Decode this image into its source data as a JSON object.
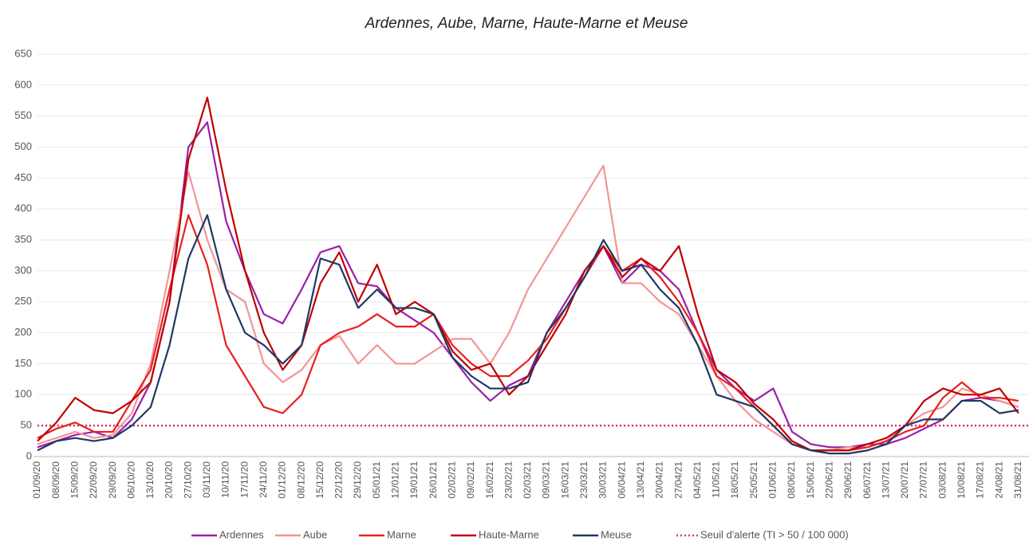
{
  "chart_data": {
    "type": "line",
    "title": "Ardennes, Aube, Marne, Haute-Marne et Meuse",
    "categories": [
      "01/09/20",
      "08/09/20",
      "15/09/20",
      "22/09/20",
      "29/09/20",
      "06/10/20",
      "13/10/20",
      "20/10/20",
      "27/10/20",
      "03/11/20",
      "10/11/20",
      "17/11/20",
      "24/11/20",
      "01/12/20",
      "08/12/20",
      "15/12/20",
      "22/12/20",
      "29/12/20",
      "05/01/21",
      "12/01/21",
      "19/01/21",
      "26/01/21",
      "02/02/21",
      "09/02/21",
      "16/02/21",
      "23/02/21",
      "02/03/21",
      "09/03/21",
      "16/03/21",
      "23/03/21",
      "30/03/21",
      "06/04/21",
      "13/04/21",
      "20/04/21",
      "27/04/21",
      "04/05/21",
      "11/05/21",
      "18/05/21",
      "25/05/21",
      "01/06/21",
      "08/06/21",
      "15/06/21",
      "22/06/21",
      "29/06/21",
      "06/07/21",
      "13/07/21",
      "20/07/21",
      "27/07/21",
      "03/08/21",
      "10/08/21",
      "17/08/21",
      "24/08/21",
      "31/08/21"
    ],
    "series": [
      {
        "name": "Ardennes",
        "color": "#9b1fa8",
        "values": [
          15,
          25,
          35,
          40,
          30,
          60,
          120,
          250,
          500,
          540,
          380,
          300,
          230,
          215,
          270,
          330,
          340,
          280,
          275,
          240,
          220,
          200,
          160,
          120,
          90,
          115,
          130,
          200,
          250,
          300,
          340,
          280,
          310,
          300,
          270,
          200,
          140,
          110,
          90,
          110,
          40,
          20,
          15,
          15,
          20,
          20,
          30,
          45,
          60,
          90,
          95,
          90,
          80
        ]
      },
      {
        "name": "Aube",
        "color": "#f39595",
        "values": [
          20,
          30,
          40,
          30,
          35,
          70,
          150,
          300,
          460,
          350,
          270,
          250,
          150,
          120,
          140,
          180,
          195,
          150,
          180,
          150,
          150,
          170,
          190,
          190,
          150,
          200,
          270,
          320,
          370,
          420,
          470,
          280,
          280,
          250,
          230,
          180,
          130,
          90,
          60,
          40,
          20,
          10,
          10,
          15,
          15,
          25,
          50,
          70,
          80,
          110,
          100,
          90,
          80
        ]
      },
      {
        "name": "Marne",
        "color": "#e8201f",
        "values": [
          30,
          45,
          55,
          40,
          40,
          90,
          140,
          270,
          390,
          310,
          180,
          130,
          80,
          70,
          100,
          180,
          200,
          210,
          230,
          210,
          210,
          230,
          180,
          150,
          130,
          130,
          155,
          190,
          240,
          290,
          340,
          300,
          320,
          290,
          250,
          200,
          130,
          110,
          80,
          50,
          20,
          10,
          10,
          10,
          15,
          25,
          40,
          50,
          95,
          120,
          95,
          95,
          90
        ]
      },
      {
        "name": "Haute-Marne",
        "color": "#c00000",
        "values": [
          25,
          55,
          95,
          75,
          70,
          90,
          120,
          250,
          480,
          580,
          430,
          300,
          200,
          140,
          180,
          280,
          330,
          250,
          310,
          230,
          250,
          230,
          170,
          140,
          150,
          100,
          130,
          180,
          230,
          300,
          340,
          290,
          320,
          300,
          340,
          230,
          140,
          120,
          85,
          60,
          25,
          10,
          10,
          10,
          20,
          30,
          50,
          90,
          110,
          100,
          100,
          110,
          70
        ]
      },
      {
        "name": "Meuse",
        "color": "#1f3864",
        "values": [
          10,
          25,
          30,
          25,
          30,
          50,
          80,
          180,
          320,
          390,
          270,
          200,
          180,
          150,
          180,
          320,
          310,
          240,
          270,
          240,
          240,
          230,
          160,
          130,
          110,
          110,
          120,
          200,
          240,
          290,
          350,
          300,
          310,
          270,
          240,
          180,
          100,
          90,
          80,
          50,
          20,
          10,
          5,
          5,
          10,
          20,
          50,
          60,
          60,
          90,
          90,
          70,
          75
        ]
      }
    ],
    "threshold": {
      "name": "Seuil d'alerte (TI > 50 / 100 000)",
      "value": 50,
      "color": "#e0306a"
    },
    "ylim": [
      0,
      650
    ],
    "yticks": [
      0,
      50,
      100,
      150,
      200,
      250,
      300,
      350,
      400,
      450,
      500,
      550,
      600,
      650
    ],
    "grid": true
  }
}
